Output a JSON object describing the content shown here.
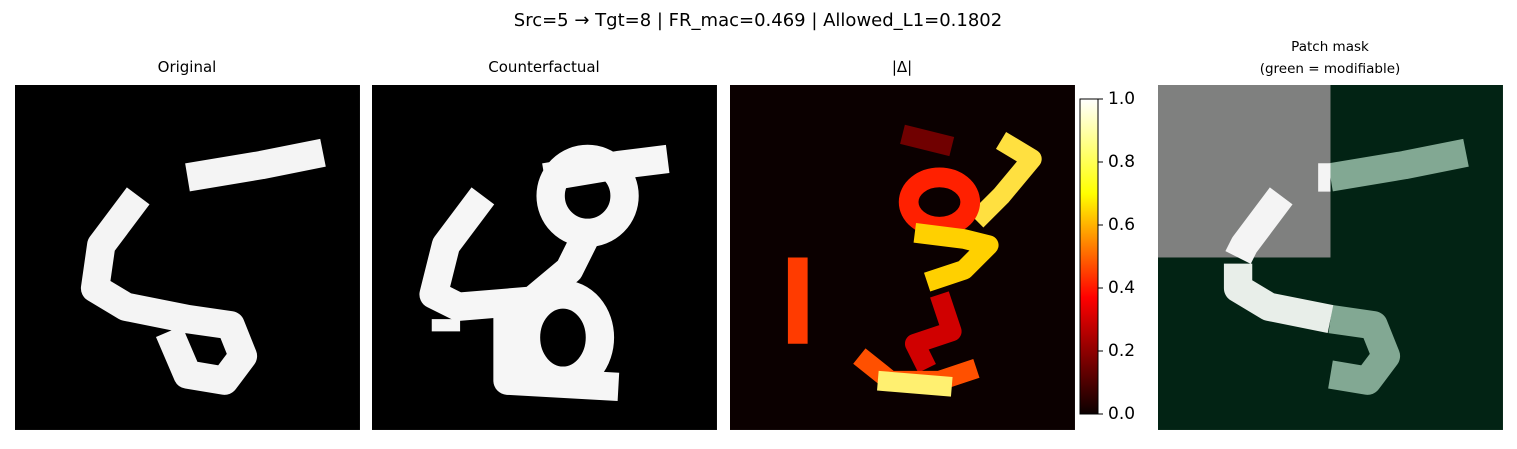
{
  "figure": {
    "title": "Src=5 → Tgt=8 | FR_mac=0.469 | Allowed_L1=0.1802",
    "panels": [
      {
        "title": "Original"
      },
      {
        "title": "Counterfactual"
      },
      {
        "title": "|Δ|"
      },
      {
        "title": [
          "Patch mask",
          "(green = modifiable)"
        ]
      }
    ],
    "colorbar": {
      "ylim": [
        0,
        1
      ],
      "yticks": [
        {
          "value": 0,
          "label": "0.0"
        },
        {
          "value": 0.2,
          "label": "0.2"
        },
        {
          "value": 0.4,
          "label": "0.4"
        },
        {
          "value": 0.6,
          "label": "0.6"
        },
        {
          "value": 0.8,
          "label": "0.8"
        },
        {
          "value": 1,
          "label": "1.0"
        }
      ]
    }
  }
}
